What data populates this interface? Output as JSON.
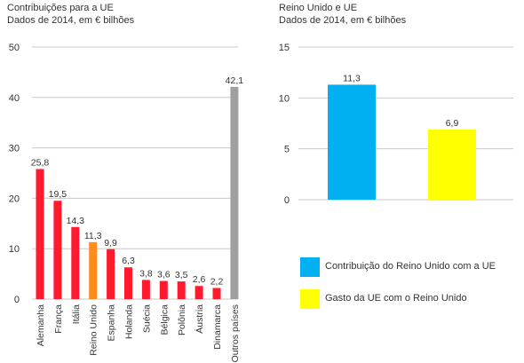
{
  "titles": {
    "left_line1": "Contribuições para a UE",
    "left_line2": "Dados de 2014, em € bilhões",
    "right_line1": "Reino Unido e UE",
    "right_line2": "Dados de 2014, em € bilhões"
  },
  "chart_data": [
    {
      "type": "bar",
      "title": "Contribuições para a UE",
      "subtitle": "Dados de 2014, em € bilhões",
      "categories": [
        "Alemanha",
        "França",
        "Itália",
        "Reino Unido",
        "Espanha",
        "Holanda",
        "Suécia",
        "Bélgica",
        "Polônia",
        "Áustria",
        "Dinamarca",
        "Outros países"
      ],
      "values": [
        25.8,
        19.5,
        14.3,
        11.3,
        9.9,
        6.3,
        3.8,
        3.6,
        3.5,
        2.6,
        2.2,
        42.1
      ],
      "value_labels": [
        "25,8",
        "19,5",
        "14,3",
        "11,3",
        "9,9",
        "6,3",
        "3,8",
        "3,6",
        "3,5",
        "2,6",
        "2,2",
        "42,1"
      ],
      "colors": [
        "#ff1a2e",
        "#ff1a2e",
        "#ff1a2e",
        "#ff8c1a",
        "#ff1a2e",
        "#ff1a2e",
        "#ff1a2e",
        "#ff1a2e",
        "#ff1a2e",
        "#ff1a2e",
        "#ff1a2e",
        "#a0a0a0"
      ],
      "ylim": [
        0,
        50
      ],
      "yticks": [
        0,
        10,
        20,
        30,
        40,
        50
      ],
      "grid": true,
      "xlabel": "",
      "ylabel": ""
    },
    {
      "type": "bar",
      "title": "Reino Unido e UE",
      "subtitle": "Dados de 2014, em € bilhões",
      "categories": [
        "Contribuição do Reino Unido com a UE",
        "Gasto da UE com o Reino Unido"
      ],
      "values": [
        11.3,
        6.9
      ],
      "value_labels": [
        "11,3",
        "6,9"
      ],
      "colors": [
        "#00b0f0",
        "#ffff00"
      ],
      "ylim": [
        0,
        15
      ],
      "yticks": [
        0,
        5,
        10,
        15
      ],
      "grid": true,
      "legend": "bottom",
      "xlabel": "",
      "ylabel": ""
    }
  ]
}
